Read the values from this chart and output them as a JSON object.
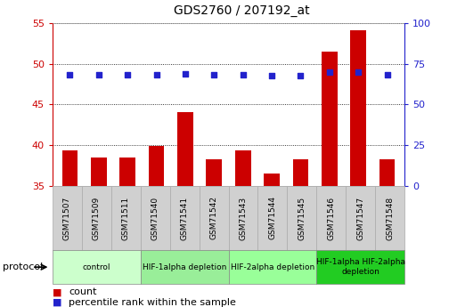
{
  "title": "GDS2760 / 207192_at",
  "samples": [
    "GSM71507",
    "GSM71509",
    "GSM71511",
    "GSM71540",
    "GSM71541",
    "GSM71542",
    "GSM71543",
    "GSM71544",
    "GSM71545",
    "GSM71546",
    "GSM71547",
    "GSM71548"
  ],
  "counts": [
    39.3,
    38.5,
    38.5,
    39.9,
    44.0,
    38.3,
    39.3,
    36.5,
    38.3,
    51.5,
    54.1,
    38.2
  ],
  "percentile_ranks": [
    68,
    68,
    68,
    68,
    68.5,
    68,
    68,
    67.5,
    67.5,
    70,
    70,
    68
  ],
  "left_ylim": [
    35,
    55
  ],
  "left_yticks": [
    35,
    40,
    45,
    50,
    55
  ],
  "right_ylim": [
    0,
    100
  ],
  "right_yticks": [
    0,
    25,
    50,
    75,
    100
  ],
  "bar_color": "#cc0000",
  "dot_color": "#2222cc",
  "grid_color": "#000000",
  "protocol_groups": [
    {
      "label": "control",
      "start": 0,
      "end": 3,
      "color": "#ccffcc"
    },
    {
      "label": "HIF-1alpha depletion",
      "start": 3,
      "end": 6,
      "color": "#99ee99"
    },
    {
      "label": "HIF-2alpha depletion",
      "start": 6,
      "end": 9,
      "color": "#99ff99"
    },
    {
      "label": "HIF-1alpha HIF-2alpha\ndepletion",
      "start": 9,
      "end": 12,
      "color": "#22cc22"
    }
  ],
  "protocol_label": "protocol",
  "legend_count_label": "count",
  "legend_pct_label": "percentile rank within the sample",
  "plot_bg_color": "#ffffff",
  "xtick_bg_color": "#d0d0d0",
  "xtick_edge_color": "#aaaaaa"
}
